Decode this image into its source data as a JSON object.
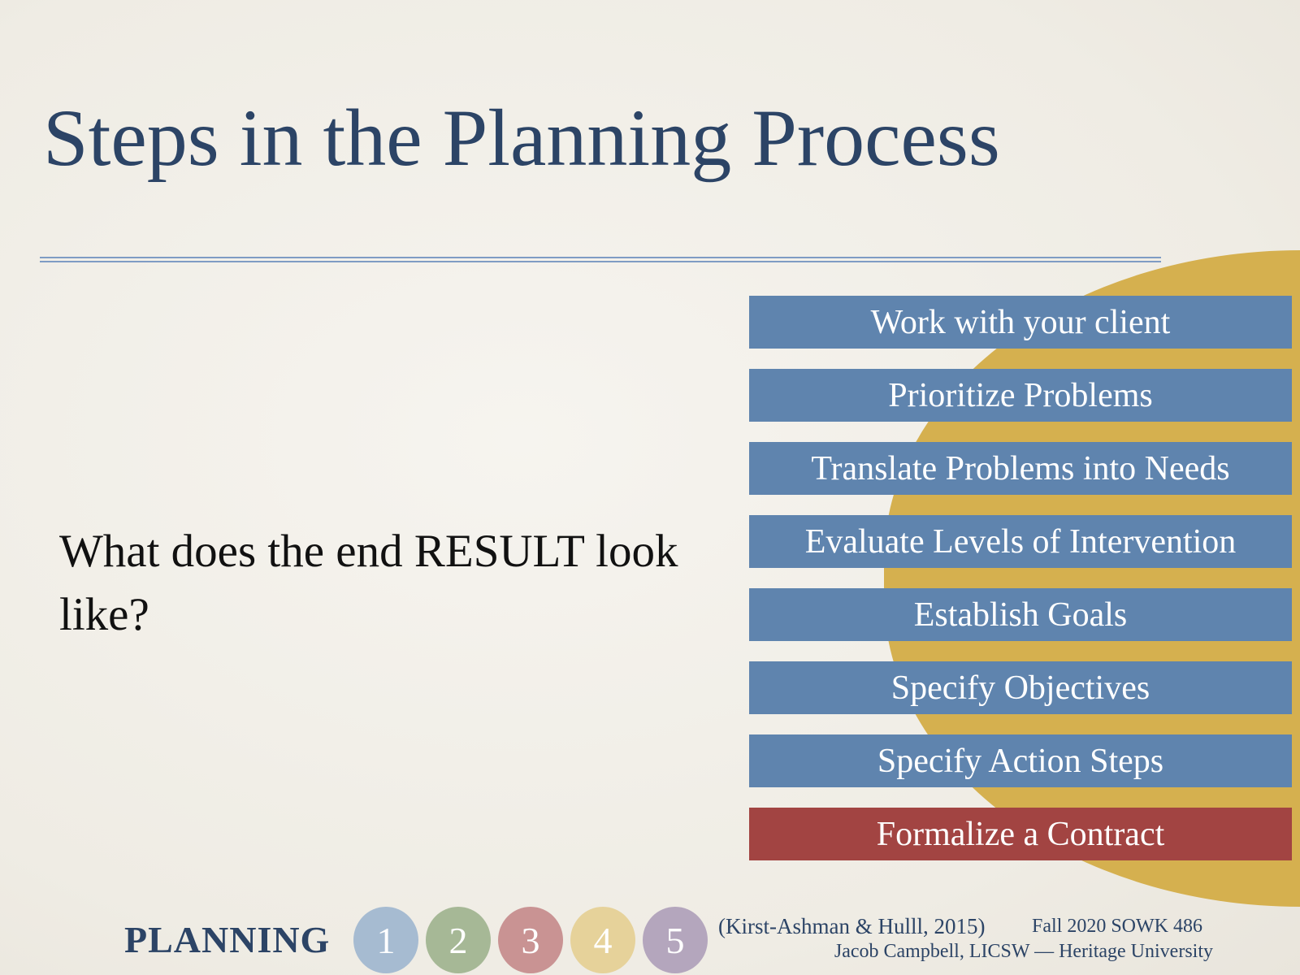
{
  "slide": {
    "title": "Steps in the Planning Process",
    "question": "What does the end RESULT look like?",
    "steps": [
      {
        "label": "Work with your client",
        "highlight": false
      },
      {
        "label": "Prioritize Problems",
        "highlight": false
      },
      {
        "label": "Translate Problems into Needs",
        "highlight": false
      },
      {
        "label": "Evaluate Levels of Intervention",
        "highlight": false
      },
      {
        "label": "Establish Goals",
        "highlight": false
      },
      {
        "label": "Specify Objectives",
        "highlight": false
      },
      {
        "label": "Specify Action Steps",
        "highlight": false
      },
      {
        "label": "Formalize a Contract",
        "highlight": true
      }
    ],
    "colors": {
      "title": "#2c4466",
      "step": "#5f84ae",
      "highlight_step": "#a24442",
      "circle": "#d5b04f"
    }
  },
  "footer": {
    "section_label": "PLANNING",
    "phases": [
      {
        "label": "1",
        "color": "#a6bbd1"
      },
      {
        "label": "2",
        "color": "#a6b896"
      },
      {
        "label": "3",
        "color": "#c99393"
      },
      {
        "label": "4",
        "color": "#e6d29a"
      },
      {
        "label": "5",
        "color": "#b4a6bd"
      }
    ],
    "citation": "(Kirst-Ashman & Hulll, 2015)",
    "course": "Fall 2020 SOWK 486",
    "author": "Jacob Campbell, LICSW — Heritage University"
  }
}
